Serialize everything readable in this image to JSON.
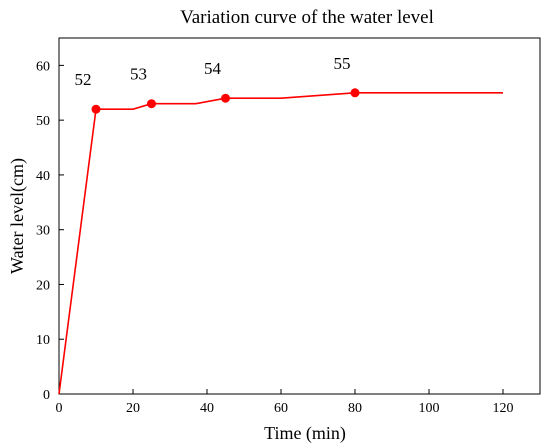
{
  "chart_data": {
    "type": "line",
    "title": "Variation curve of the water level",
    "xlabel": "Time (min)",
    "ylabel": "Water level(cm)",
    "xlim": [
      0,
      130
    ],
    "ylim": [
      0,
      65
    ],
    "xticks": [
      0,
      20,
      40,
      60,
      80,
      100,
      120
    ],
    "yticks": [
      0,
      10,
      20,
      30,
      40,
      50,
      60
    ],
    "grid": false,
    "line_color": "#ff0000",
    "series": [
      {
        "x": [
          0,
          10,
          20,
          25,
          37,
          45,
          60,
          80,
          120
        ],
        "y": [
          0,
          52,
          52,
          53,
          53,
          54,
          54,
          55,
          55
        ]
      }
    ],
    "markers": [
      {
        "x": 10,
        "y": 52,
        "label": "52"
      },
      {
        "x": 25,
        "y": 53,
        "label": "53"
      },
      {
        "x": 45,
        "y": 54,
        "label": "54"
      },
      {
        "x": 80,
        "y": 55,
        "label": "55"
      }
    ]
  }
}
